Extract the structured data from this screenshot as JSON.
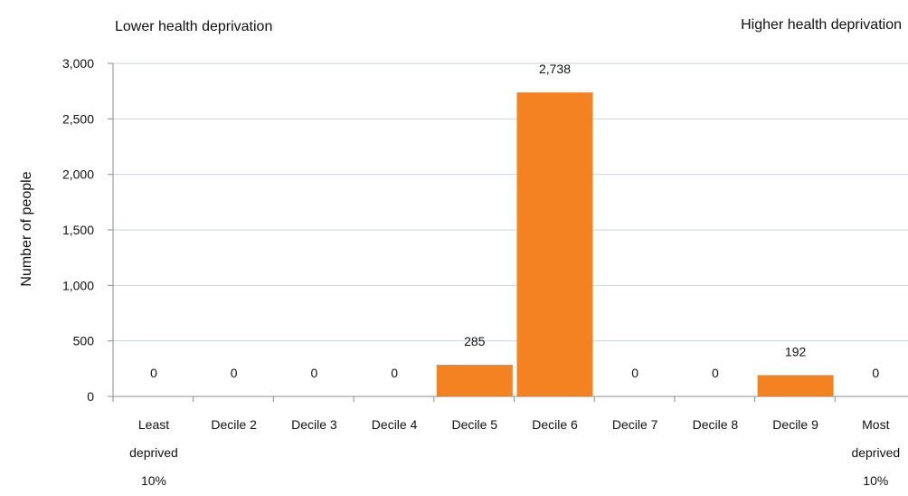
{
  "chart_data": {
    "type": "bar",
    "ylabel": "Number of people",
    "annotations": {
      "left": "Lower health deprivation",
      "right": "Higher health deprivation"
    },
    "categories": [
      [
        "Least",
        "deprived",
        "10%"
      ],
      [
        "Decile 2"
      ],
      [
        "Decile 3"
      ],
      [
        "Decile 4"
      ],
      [
        "Decile 5"
      ],
      [
        "Decile 6"
      ],
      [
        "Decile 7"
      ],
      [
        "Decile 8"
      ],
      [
        "Decile 9"
      ],
      [
        "Most",
        "deprived",
        "10%"
      ]
    ],
    "values": [
      0,
      0,
      0,
      0,
      285,
      2738,
      0,
      0,
      192,
      0
    ],
    "data_labels": [
      "0",
      "0",
      "0",
      "0",
      "285",
      "2,738",
      "0",
      "0",
      "192",
      "0"
    ],
    "yticks": [
      0,
      500,
      1000,
      1500,
      2000,
      2500,
      3000
    ],
    "ytick_labels": [
      "0",
      "500",
      "1,000",
      "1,500",
      "2,000",
      "2,500",
      "3,000"
    ],
    "ylim": [
      0,
      3000
    ],
    "grid": true,
    "legend": "none",
    "colors": {
      "bar": "#F58220",
      "grid": "#C9D3DD",
      "axis": "#8C8C8C"
    }
  }
}
